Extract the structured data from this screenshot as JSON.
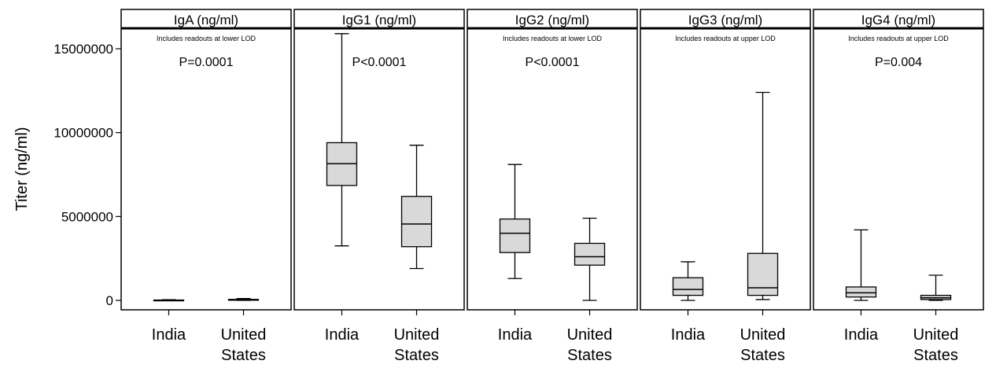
{
  "chart_data": {
    "type": "boxplot",
    "ylabel": "Titer (ng/ml)",
    "yticks": [
      0,
      5000000,
      10000000,
      15000000
    ],
    "ytick_labels": [
      "0",
      "5000000",
      "10000000",
      "15000000"
    ],
    "categories": [
      {
        "line1": "India",
        "line2": ""
      },
      {
        "line1": "United",
        "line2": "States"
      }
    ],
    "colors": {
      "box_fill": "#d9d9d9",
      "stroke": "#000000"
    },
    "panels": [
      {
        "title": "IgA (ng/ml)",
        "note": "Includes readouts at lower LOD",
        "pvalue": "P=0.0001",
        "boxes": [
          {
            "category": "India",
            "min": 0,
            "q1": 0,
            "median": 0,
            "q3": 20000,
            "max": 40000
          },
          {
            "category": "United States",
            "min": 0,
            "q1": 10000,
            "median": 30000,
            "q3": 60000,
            "max": 110000
          }
        ]
      },
      {
        "title": "IgG1 (ng/ml)",
        "note": "",
        "pvalue": "P<0.0001",
        "boxes": [
          {
            "category": "India",
            "min": 3250000,
            "q1": 6850000,
            "median": 8150000,
            "q3": 9400000,
            "max": 15900000
          },
          {
            "category": "United States",
            "min": 1900000,
            "q1": 3200000,
            "median": 4550000,
            "q3": 6200000,
            "max": 9250000
          }
        ]
      },
      {
        "title": "IgG2 (ng/ml)",
        "note": "Includes readouts at lower LOD",
        "pvalue": "P<0.0001",
        "boxes": [
          {
            "category": "India",
            "min": 1300000,
            "q1": 2850000,
            "median": 4000000,
            "q3": 4850000,
            "max": 8100000
          },
          {
            "category": "United States",
            "min": 0,
            "q1": 2100000,
            "median": 2600000,
            "q3": 3400000,
            "max": 4900000
          }
        ]
      },
      {
        "title": "IgG3 (ng/ml)",
        "note": "Includes readouts at upper LOD",
        "pvalue": "",
        "boxes": [
          {
            "category": "India",
            "min": 0,
            "q1": 300000,
            "median": 650000,
            "q3": 1350000,
            "max": 2300000
          },
          {
            "category": "United States",
            "min": 50000,
            "q1": 300000,
            "median": 750000,
            "q3": 2800000,
            "max": 12400000
          }
        ]
      },
      {
        "title": "IgG4 (ng/ml)",
        "note": "Includes readouts at upper LOD",
        "pvalue": "P=0.004",
        "boxes": [
          {
            "category": "India",
            "min": 0,
            "q1": 200000,
            "median": 450000,
            "q3": 800000,
            "max": 4200000
          },
          {
            "category": "United States",
            "min": 0,
            "q1": 50000,
            "median": 150000,
            "q3": 300000,
            "max": 1500000
          }
        ]
      }
    ]
  }
}
